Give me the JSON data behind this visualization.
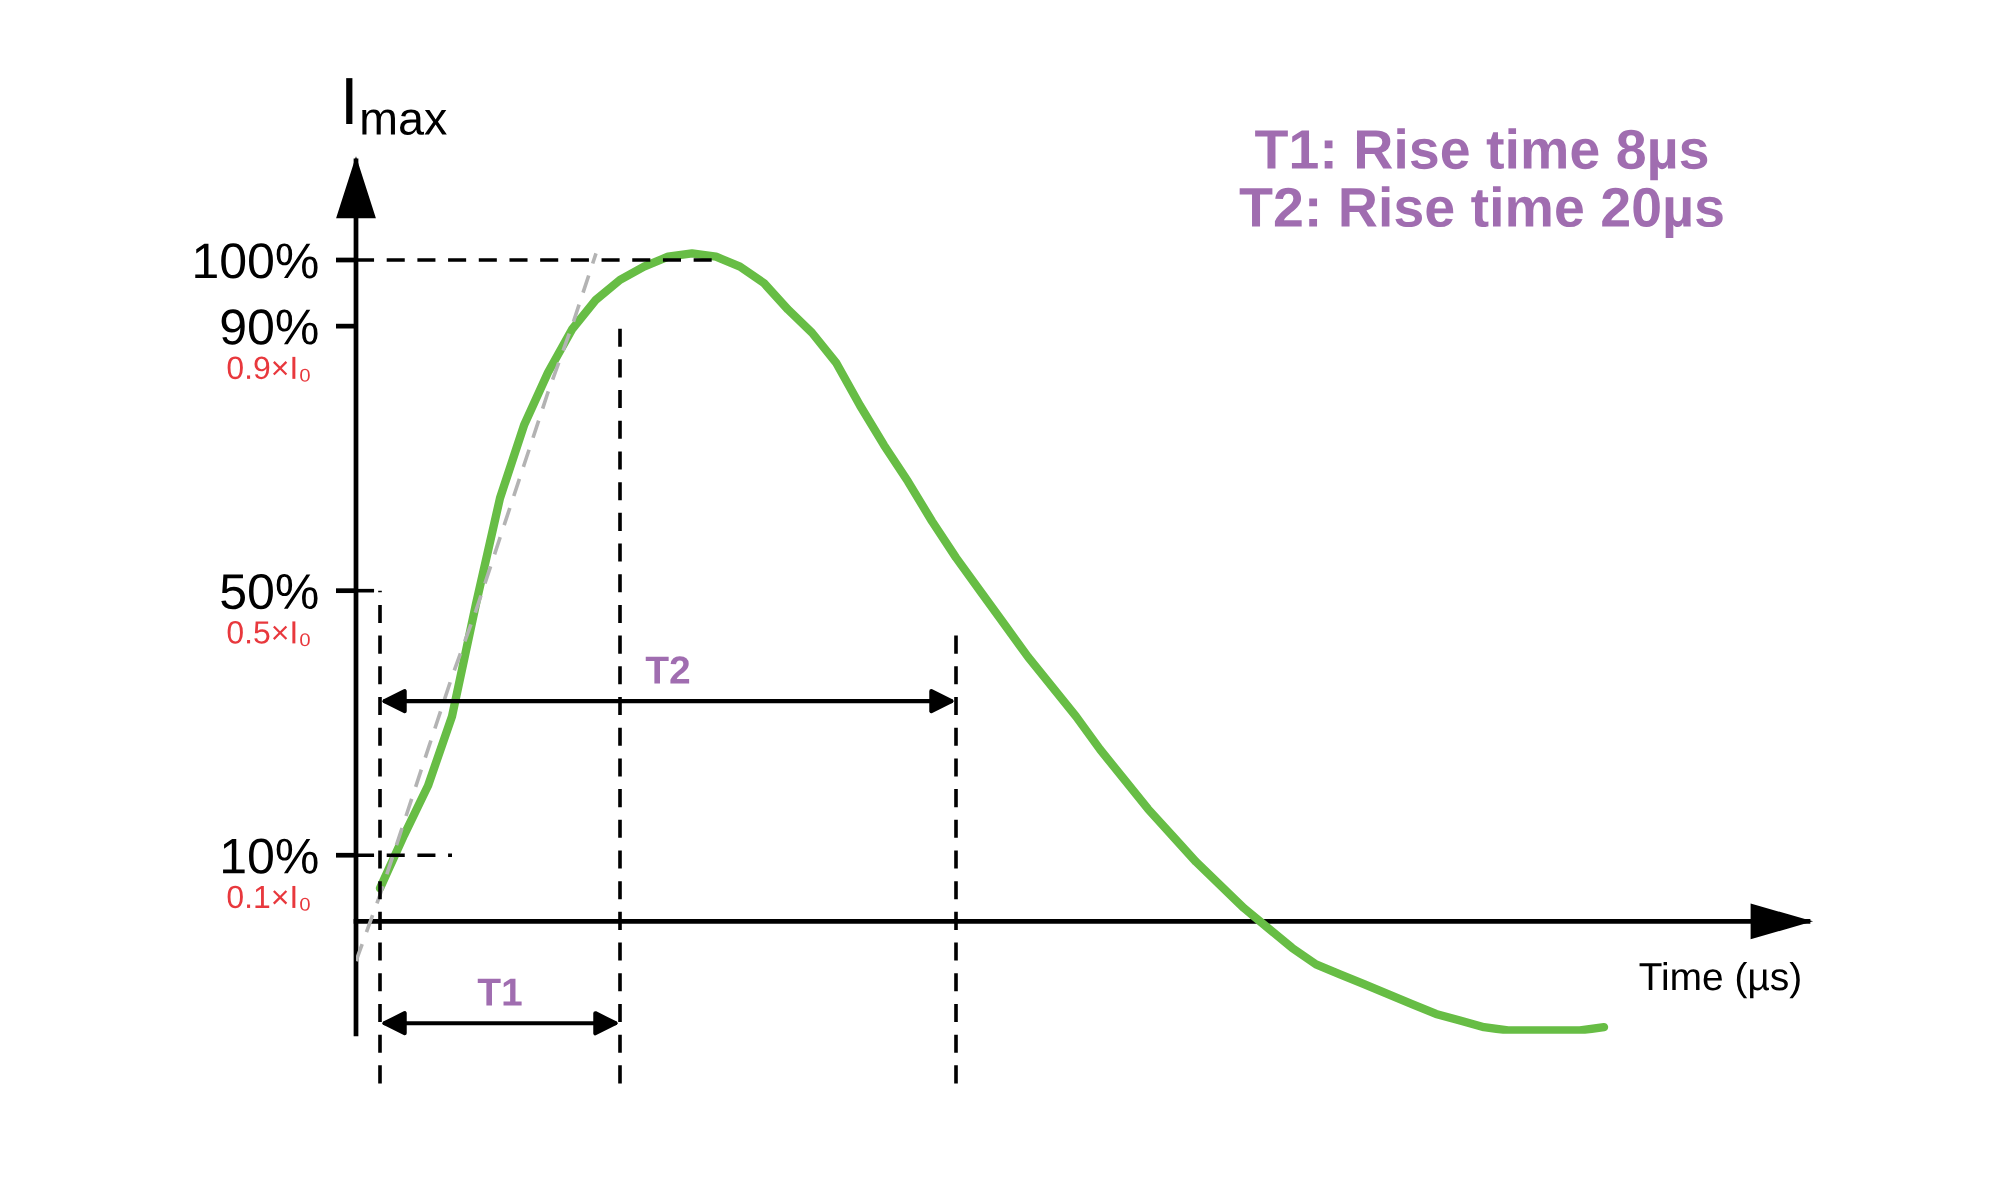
{
  "chart_data": {
    "type": "line",
    "ylabel": "I$_{max}$",
    "xlabel": "Time (µs)",
    "ylim": [
      -17,
      115
    ],
    "yticks": [
      {
        "value": 10,
        "label": "10%"
      },
      {
        "value": 50,
        "label": "50%"
      },
      {
        "value": 90,
        "label": "90%"
      },
      {
        "value": 100,
        "label": "100%"
      }
    ],
    "tick_labels": "y",
    "categories": [
      null,
      null,
      null,
      null,
      null,
      null,
      null,
      null,
      null,
      null,
      null,
      null,
      null,
      null,
      null,
      null,
      null,
      null,
      null,
      null,
      null,
      null,
      null,
      null,
      null,
      null,
      null,
      null,
      null,
      null,
      null,
      null,
      null,
      null,
      null,
      null,
      null,
      null,
      null,
      null,
      null,
      null,
      null,
      null,
      null,
      null,
      null,
      null,
      null,
      null,
      null,
      null,
      null,
      null,
      null,
      null,
      null,
      null,
      null,
      null,
      null
    ],
    "series": [
      {
        "color": "#67bd45",
        "line_style": "solid",
        "values": [
          null,
          5,
          13,
          20.5,
          31,
          48,
          64,
          75,
          83,
          89.5,
          94,
          97,
          99,
          100.5,
          101,
          100.5,
          99,
          96.5,
          92.5,
          89,
          84.5,
          78,
          72,
          66.5,
          60.5,
          55,
          50,
          45,
          40,
          35.5,
          31,
          26,
          21.5,
          17,
          13,
          9,
          5.5,
          2,
          -1,
          -4,
          -6.5,
          -8,
          -9.5,
          -11,
          -12.5,
          -14,
          -15,
          -16,
          -16.5,
          -16.5,
          -16.5,
          -16.5,
          -16,
          null,
          null,
          null,
          null,
          null,
          null,
          null,
          null
        ]
      },
      {
        "color": "#b3b3b3",
        "line_style": "dashed",
        "values": [
          -6,
          4,
          15,
          26,
          37,
          47,
          58,
          69,
          80,
          90,
          101,
          null,
          null,
          null,
          null,
          null,
          null,
          null,
          null,
          null,
          null,
          null,
          null,
          null,
          null,
          null,
          null,
          null,
          null,
          null,
          null,
          null,
          null,
          null,
          null,
          null,
          null,
          null,
          null,
          null,
          null,
          null,
          null,
          null,
          null,
          null,
          null,
          null,
          null,
          null,
          null,
          null,
          null,
          null,
          null,
          null,
          null,
          null,
          null,
          null,
          null
        ]
      },
      {
        "color": "#000000",
        "line_style": "dashed",
        "values": [
          100,
          100,
          100,
          100,
          100,
          100,
          100,
          100,
          100,
          100,
          100,
          100,
          100,
          100,
          100,
          100,
          null,
          null,
          null,
          null,
          null,
          null,
          null,
          null,
          null,
          null,
          null,
          null,
          null,
          null,
          null,
          null,
          null,
          null,
          null,
          null,
          null,
          null,
          null,
          null,
          null,
          null,
          null,
          null,
          null,
          null,
          null,
          null,
          null,
          null,
          null,
          null,
          null,
          null,
          null,
          null,
          null,
          null,
          null,
          null,
          null
        ]
      },
      {
        "color": "#000000",
        "line_style": "dashed",
        "values": [
          10,
          10,
          10,
          10,
          10,
          null,
          null,
          null,
          null,
          null,
          null,
          null,
          null,
          null,
          null,
          null,
          null,
          null,
          null,
          null,
          null,
          null,
          null,
          null,
          null,
          null,
          null,
          null,
          null,
          null,
          null,
          null,
          null,
          null,
          null,
          null,
          null,
          null,
          null,
          null,
          null,
          null,
          null,
          null,
          null,
          null,
          null,
          null,
          null,
          null,
          null,
          null,
          null,
          null,
          null,
          null,
          null,
          null,
          null,
          null,
          null
        ]
      },
      {
        "color": "#000000",
        "line_style": "dashed",
        "values": [
          50,
          50,
          null,
          null,
          null,
          null,
          null,
          null,
          null,
          null,
          null,
          null,
          null,
          null,
          null,
          null,
          null,
          null,
          null,
          null,
          null,
          null,
          null,
          null,
          null,
          null,
          null,
          null,
          null,
          null,
          null,
          null,
          null,
          null,
          null,
          null,
          null,
          null,
          null,
          null,
          null,
          null,
          null,
          null,
          null,
          null,
          null,
          null,
          null,
          null,
          null,
          null,
          null,
          null,
          null,
          null,
          null,
          null,
          null,
          null,
          null
        ]
      }
    ],
    "annotations": [
      "T1: Rise time 8µs",
      "T2: Rise time 20µs",
      "0.9×I₀",
      "0.5×I₀",
      "0.1×I₀",
      "T1",
      "T2"
    ]
  }
}
